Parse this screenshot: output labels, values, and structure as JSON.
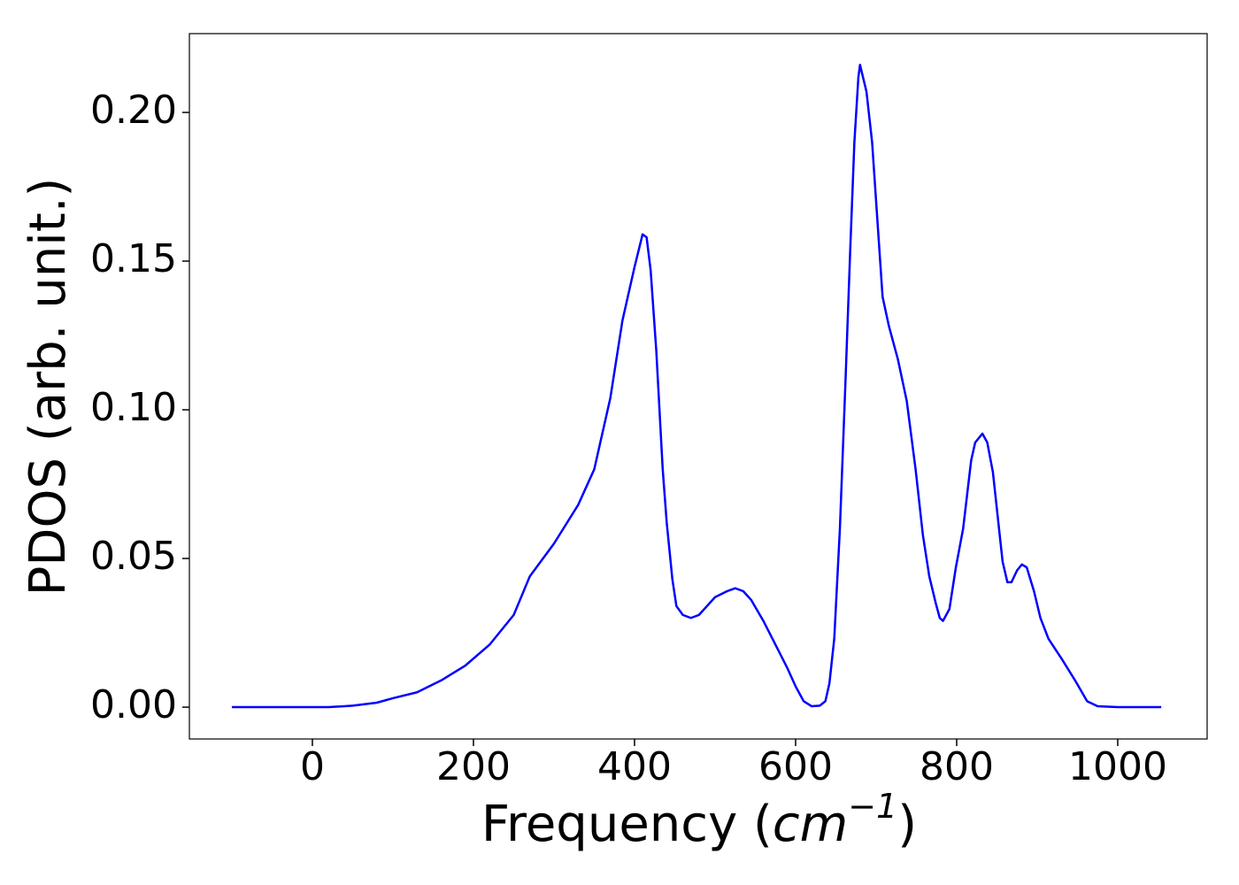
{
  "chart_data": {
    "type": "line",
    "ylabel": "PDOS (arb. unit.)",
    "xlabel": [
      "Frequency (",
      "cm",
      "−1",
      ")"
    ],
    "x": [
      -100,
      0,
      20,
      50,
      80,
      100,
      130,
      160,
      190,
      220,
      250,
      270,
      300,
      330,
      350,
      370,
      385,
      400,
      410,
      415,
      420,
      427,
      435,
      440,
      447,
      452,
      460,
      470,
      480,
      490,
      500,
      515,
      525,
      535,
      545,
      560,
      575,
      590,
      600,
      610,
      620,
      630,
      637,
      642,
      648,
      655,
      662,
      668,
      673,
      678,
      680,
      688,
      695,
      708,
      716,
      727,
      738,
      749,
      758,
      766,
      774,
      779,
      783,
      791,
      799,
      808,
      818,
      823,
      832,
      838,
      845,
      857,
      863,
      868,
      875,
      881,
      887,
      896,
      904,
      914,
      931,
      947,
      962,
      975,
      1000,
      1054
    ],
    "series": [
      {
        "color": "#0000ff",
        "values": [
          0,
          0,
          0,
          0.0005,
          0.0015,
          0.003,
          0.005,
          0.009,
          0.014,
          0.021,
          0.031,
          0.044,
          0.055,
          0.068,
          0.08,
          0.104,
          0.13,
          0.148,
          0.159,
          0.158,
          0.147,
          0.12,
          0.08,
          0.062,
          0.043,
          0.034,
          0.031,
          0.03,
          0.031,
          0.034,
          0.037,
          0.039,
          0.04,
          0.039,
          0.036,
          0.029,
          0.021,
          0.013,
          0.007,
          0.002,
          0.0003,
          0.0005,
          0.002,
          0.008,
          0.023,
          0.06,
          0.11,
          0.155,
          0.19,
          0.212,
          0.216,
          0.207,
          0.19,
          0.138,
          0.128,
          0.117,
          0.103,
          0.08,
          0.058,
          0.044,
          0.035,
          0.03,
          0.029,
          0.033,
          0.047,
          0.06,
          0.083,
          0.089,
          0.092,
          0.089,
          0.079,
          0.049,
          0.042,
          0.042,
          0.046,
          0.048,
          0.047,
          0.039,
          0.03,
          0.023,
          0.016,
          0.009,
          0.002,
          0.0003,
          0,
          0
        ]
      }
    ],
    "xlim": [
      -152.7,
      1111
    ],
    "ylim": [
      -0.0107,
      0.2265
    ],
    "xticks": [
      0,
      200,
      400,
      600,
      800,
      1000
    ],
    "yticks": [
      {
        "value": 0,
        "label": "0.00"
      },
      {
        "value": 0.05,
        "label": "0.05"
      },
      {
        "value": 0.1,
        "label": "0.10"
      },
      {
        "value": 0.15,
        "label": "0.15"
      },
      {
        "value": 0.2,
        "label": "0.20"
      }
    ]
  }
}
